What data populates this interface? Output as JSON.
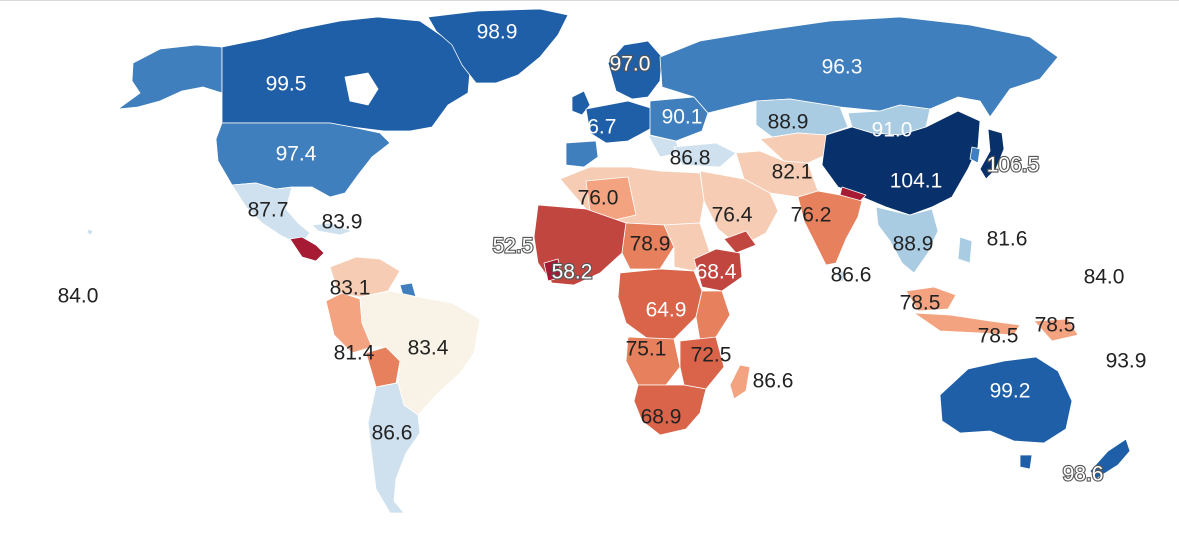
{
  "colors": {
    "deep_blue": "#08306b",
    "dark_blue": "#1f5fa8",
    "mid_blue": "#3f7fbd",
    "light_blue": "#a9cce3",
    "pale_blue": "#cfe1ef",
    "cream": "#f8f3e6",
    "pale_peach": "#f6cdb4",
    "light_salmon": "#f3a380",
    "salmon": "#e6805d",
    "orange_red": "#d9644a",
    "red": "#c0463f",
    "dark_red": "#a61b33",
    "label_dark": "#222222",
    "label_light": "#ffffff"
  },
  "labels": [
    {
      "id": "greenland",
      "value": "98.9",
      "style": "light"
    },
    {
      "id": "canada",
      "value": "99.5",
      "style": "light"
    },
    {
      "id": "usa",
      "value": "97.4",
      "style": "light"
    },
    {
      "id": "mexico",
      "value": "87.7",
      "style": "dark"
    },
    {
      "id": "caribbean",
      "value": "83.9",
      "style": "dark"
    },
    {
      "id": "hawaii",
      "value": "84.0",
      "style": "dark"
    },
    {
      "id": "colombia",
      "value": "83.1",
      "style": "dark"
    },
    {
      "id": "peru",
      "value": "81.4",
      "style": "dark"
    },
    {
      "id": "brazil",
      "value": "83.4",
      "style": "dark"
    },
    {
      "id": "argentina",
      "value": "86.6",
      "style": "dark"
    },
    {
      "id": "finland",
      "value": "97.0",
      "style": "halo"
    },
    {
      "id": "russia",
      "value": "96.3",
      "style": "light"
    },
    {
      "id": "western-europe",
      "value": "96.7",
      "style": "light"
    },
    {
      "id": "eastern-europe",
      "value": "90.1",
      "style": "light"
    },
    {
      "id": "kazakhstan",
      "value": "88.9",
      "style": "dark"
    },
    {
      "id": "mongolia",
      "value": "91.0",
      "style": "light"
    },
    {
      "id": "turkey",
      "value": "86.8",
      "style": "dark"
    },
    {
      "id": "iran",
      "value": "82.1",
      "style": "dark"
    },
    {
      "id": "china",
      "value": "104.1",
      "style": "light"
    },
    {
      "id": "japan",
      "value": "106.5",
      "style": "halo"
    },
    {
      "id": "algeria",
      "value": "76.0",
      "style": "dark"
    },
    {
      "id": "west-africa-coast",
      "value": "52.5",
      "style": "halo"
    },
    {
      "id": "west-africa",
      "value": "58.2",
      "style": "halo"
    },
    {
      "id": "chad",
      "value": "78.9",
      "style": "dark"
    },
    {
      "id": "arabia",
      "value": "76.4",
      "style": "dark"
    },
    {
      "id": "india",
      "value": "76.2",
      "style": "dark"
    },
    {
      "id": "ethiopia",
      "value": "68.4",
      "style": "light"
    },
    {
      "id": "se-asia",
      "value": "88.9",
      "style": "dark"
    },
    {
      "id": "philippines",
      "value": "81.6",
      "style": "dark"
    },
    {
      "id": "sri-lanka",
      "value": "86.6",
      "style": "dark"
    },
    {
      "id": "micronesia",
      "value": "84.0",
      "style": "dark"
    },
    {
      "id": "congo",
      "value": "64.9",
      "style": "light"
    },
    {
      "id": "malaysia",
      "value": "78.5",
      "style": "dark"
    },
    {
      "id": "indonesia",
      "value": "78.5",
      "style": "dark"
    },
    {
      "id": "png",
      "value": "78.5",
      "style": "dark"
    },
    {
      "id": "angola",
      "value": "75.1",
      "style": "dark"
    },
    {
      "id": "tanzania",
      "value": "72.5",
      "style": "dark"
    },
    {
      "id": "madagascar",
      "value": "86.6",
      "style": "dark"
    },
    {
      "id": "solomon",
      "value": "93.9",
      "style": "dark"
    },
    {
      "id": "australia",
      "value": "99.2",
      "style": "light"
    },
    {
      "id": "south-africa",
      "value": "68.9",
      "style": "dark"
    },
    {
      "id": "new-zealand",
      "value": "98.6",
      "style": "halo"
    }
  ]
}
